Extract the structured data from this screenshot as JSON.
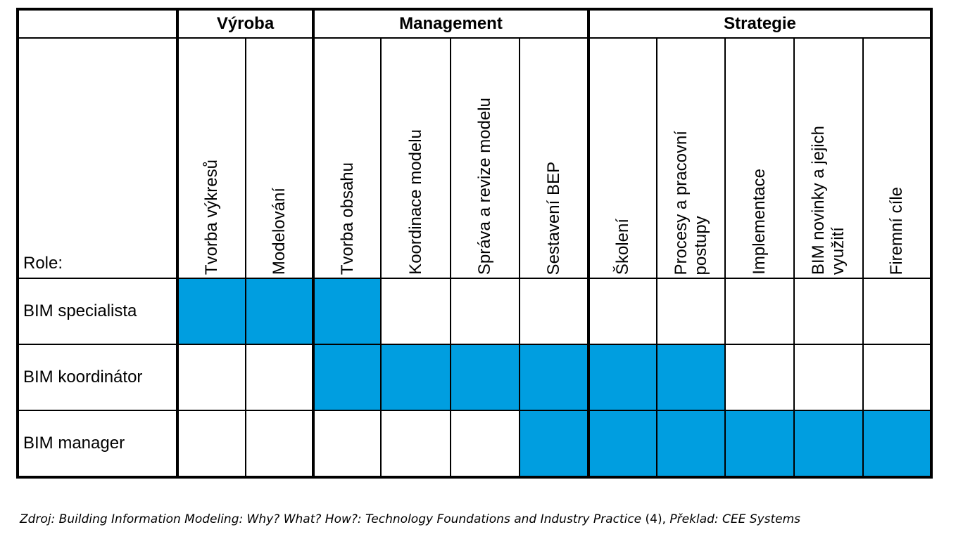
{
  "groups": [
    {
      "label": "Výroba",
      "span": 2
    },
    {
      "label": "Management",
      "span": 4
    },
    {
      "label": "Strategie",
      "span": 5
    }
  ],
  "role_header": "Role:",
  "columns": [
    "Tvorba výkresů",
    "Modelování",
    "Tvorba obsahu",
    "Koordinace modelu",
    "Správa a revize modelu",
    "Sestavení BEP",
    "Školení",
    "Procesy a pracovní\npostupy",
    "Implementace",
    "BIM novinky a jejich\nvyužití",
    "Firemní cíle"
  ],
  "rows": [
    {
      "role": "BIM specialista",
      "cells": [
        true,
        true,
        true,
        false,
        false,
        false,
        false,
        false,
        false,
        false,
        false
      ]
    },
    {
      "role": "BIM koordinátor",
      "cells": [
        false,
        false,
        true,
        true,
        true,
        true,
        true,
        true,
        false,
        false,
        false
      ]
    },
    {
      "role": "BIM manager",
      "cells": [
        false,
        false,
        false,
        false,
        false,
        true,
        true,
        true,
        true,
        true,
        true
      ]
    }
  ],
  "highlight_color": "#009ee0",
  "caption": {
    "source": "Zdroj: Building Information Modeling: Why? What? How?: Technology Foundations and Industry Practice",
    "ref": " (4), ",
    "translation": "Překlad: CEE Systems"
  }
}
